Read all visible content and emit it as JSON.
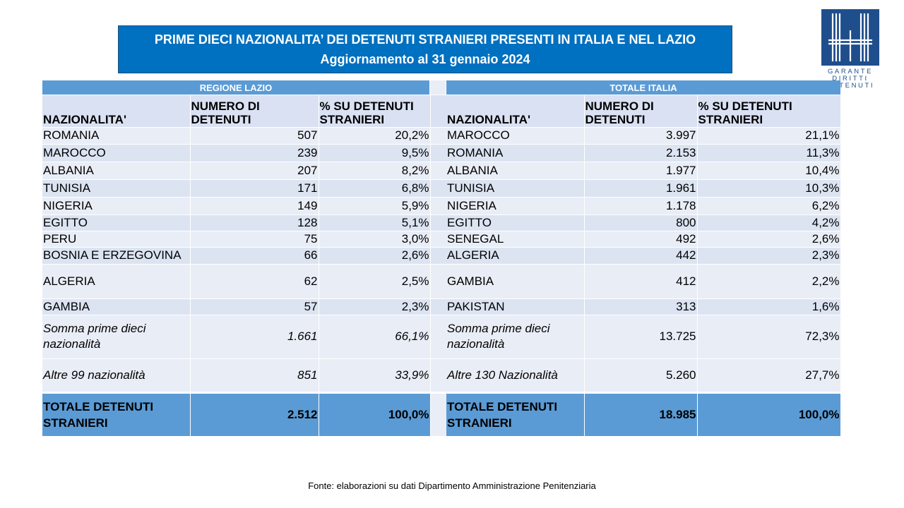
{
  "title": {
    "line1": "PRIME DIECI NAZIONALITA’ DEI DETENUTI STRANIERI PRESENTI IN ITALIA E NEL LAZIO",
    "line2": "Aggiornamento al 31 gennaio 2024"
  },
  "logo": {
    "line1": "GARANTE",
    "line2": "DIRITTI",
    "line3": "DETENUTI"
  },
  "lazio": {
    "band": "REGIONE LAZIO",
    "headers": [
      "NAZIONALITA'",
      "NUMERO DI DETENUTI",
      "% SU DETENUTI STRANIERI"
    ],
    "rows": [
      [
        "ROMANIA",
        "507",
        "20,2%"
      ],
      [
        "MAROCCO",
        "239",
        "9,5%"
      ],
      [
        "ALBANIA",
        "207",
        "8,2%"
      ],
      [
        "TUNISIA",
        "171",
        "6,8%"
      ],
      [
        "NIGERIA",
        "149",
        "5,9%"
      ],
      [
        "EGITTO",
        "128",
        "5,1%"
      ],
      [
        "PERU",
        "75",
        "3,0%"
      ],
      [
        "BOSNIA E ERZEGOVINA",
        "66",
        "2,6%"
      ],
      [
        "ALGERIA",
        "62",
        "2,5%"
      ],
      [
        "GAMBIA",
        "57",
        "2,3%"
      ]
    ],
    "sum": [
      "Somma prime dieci nazionalità",
      "1.661",
      "66,1%"
    ],
    "others": [
      "Altre 99 nazionalità",
      "851",
      "33,9%"
    ],
    "total": [
      "TOTALE DETENUTI STRANIERI",
      "2.512",
      "100,0%"
    ]
  },
  "italia": {
    "band": "TOTALE ITALIA",
    "headers": [
      "NAZIONALITA'",
      "NUMERO DI DETENUTI",
      "% SU DETENUTI STRANIERI"
    ],
    "rows": [
      [
        "MAROCCO",
        "3.997",
        "21,1%"
      ],
      [
        "ROMANIA",
        "2.153",
        "11,3%"
      ],
      [
        "ALBANIA",
        "1.977",
        "10,4%"
      ],
      [
        "TUNISIA",
        "1.961",
        "10,3%"
      ],
      [
        "NIGERIA",
        "1.178",
        "6,2%"
      ],
      [
        "EGITTO",
        "800",
        "4,2%"
      ],
      [
        "SENEGAL",
        "492",
        "2,6%"
      ],
      [
        "ALGERIA",
        "442",
        "2,3%"
      ],
      [
        "GAMBIA",
        "412",
        "2,2%"
      ],
      [
        "PAKISTAN",
        "313",
        "1,6%"
      ]
    ],
    "sum": [
      "Somma prime dieci nazionalità",
      "13.725",
      "72,3%"
    ],
    "others": [
      "Altre 130 Nazionalità",
      "5.260",
      "27,7%"
    ],
    "total": [
      "TOTALE DETENUTI STRANIERI",
      "18.985",
      "100,0%"
    ]
  },
  "footer": "Fonte: elaborazioni su dati Dipartimento Amministrazione Penitenziaria",
  "colors": {
    "title_bg": "#0070c0",
    "band_bg": "#5b9bd5",
    "header_bg": "#d9e1f2",
    "row_bg": "#e9edf6",
    "logo": "#1f4e8c"
  }
}
